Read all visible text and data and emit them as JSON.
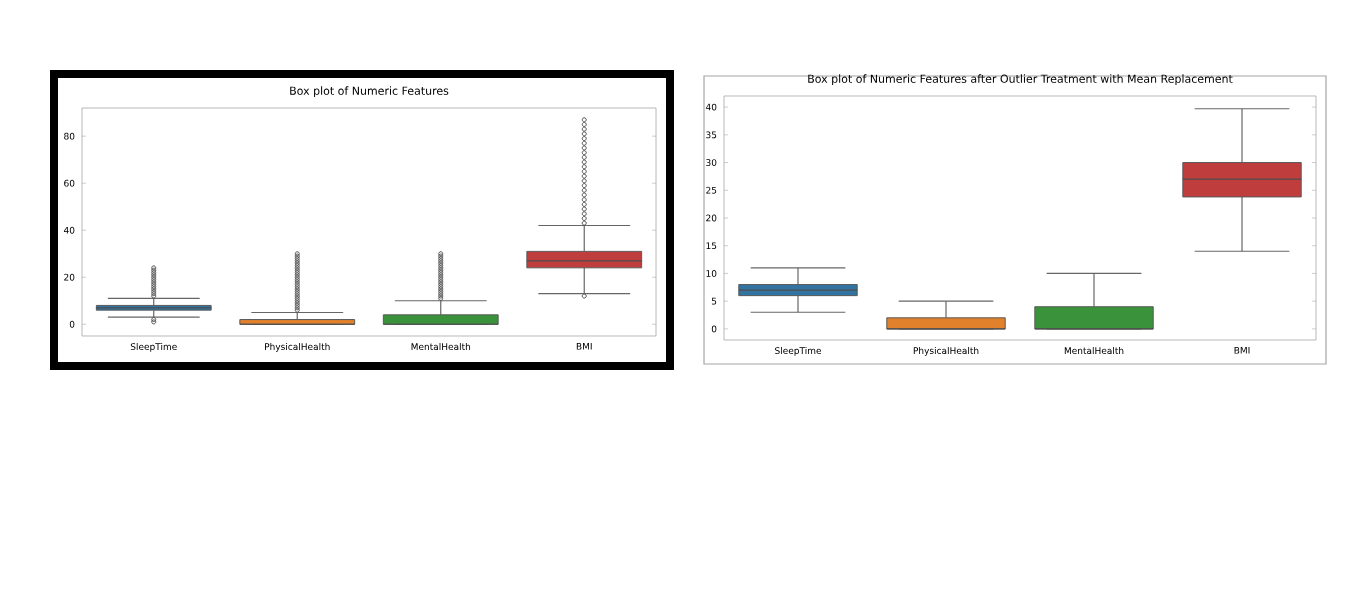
{
  "chart_data": [
    {
      "type": "box",
      "title": "Box plot of Numeric Features",
      "categories": [
        "SleepTime",
        "PhysicalHealth",
        "MentalHealth",
        "BMI"
      ],
      "colors": [
        "#3274a1",
        "#e1812c",
        "#3a923a",
        "#c03d3e"
      ],
      "ylim": [
        -5,
        92
      ],
      "yticks": [
        0,
        20,
        40,
        60,
        80
      ],
      "boxes": [
        {
          "low": 3,
          "q1": 6,
          "median": 7,
          "q3": 8,
          "high": 11,
          "outliers": [
            1,
            2,
            12,
            13,
            14,
            15,
            16,
            17,
            18,
            19,
            20,
            21,
            22,
            23,
            24
          ]
        },
        {
          "low": 0,
          "q1": 0,
          "median": 0,
          "q3": 2,
          "high": 5,
          "outliers": [
            6,
            7,
            8,
            9,
            10,
            11,
            12,
            13,
            14,
            15,
            16,
            17,
            18,
            19,
            20,
            21,
            22,
            23,
            24,
            25,
            26,
            27,
            28,
            29,
            30
          ]
        },
        {
          "low": 0,
          "q1": 0,
          "median": 0,
          "q3": 4,
          "high": 10,
          "outliers": [
            11,
            12,
            13,
            14,
            15,
            16,
            17,
            18,
            19,
            20,
            21,
            22,
            23,
            24,
            25,
            26,
            27,
            28,
            29,
            30
          ]
        },
        {
          "low": 13,
          "q1": 24,
          "median": 27,
          "q3": 31,
          "high": 42,
          "outliers": [
            12,
            43,
            45,
            47,
            49,
            51,
            53,
            55,
            57,
            59,
            61,
            63,
            65,
            67,
            69,
            71,
            73,
            75,
            77,
            79,
            81,
            83,
            85,
            87
          ]
        }
      ]
    },
    {
      "type": "box",
      "title": "Box plot of Numeric Features after Outlier Treatment with Mean Replacement",
      "categories": [
        "SleepTime",
        "PhysicalHealth",
        "MentalHealth",
        "BMI"
      ],
      "colors": [
        "#3274a1",
        "#e1812c",
        "#3a923a",
        "#c03d3e"
      ],
      "ylim": [
        -2,
        42
      ],
      "yticks": [
        0,
        5,
        10,
        15,
        20,
        25,
        30,
        35,
        40
      ],
      "boxes": [
        {
          "low": 3,
          "q1": 6,
          "median": 7,
          "q3": 8,
          "high": 11
        },
        {
          "low": 0,
          "q1": 0,
          "median": 0,
          "q3": 2,
          "high": 5
        },
        {
          "low": 0,
          "q1": 0,
          "median": 0,
          "q3": 4,
          "high": 10
        },
        {
          "low": 14,
          "q1": 23.8,
          "median": 27,
          "q3": 30,
          "high": 39.7
        }
      ]
    }
  ]
}
